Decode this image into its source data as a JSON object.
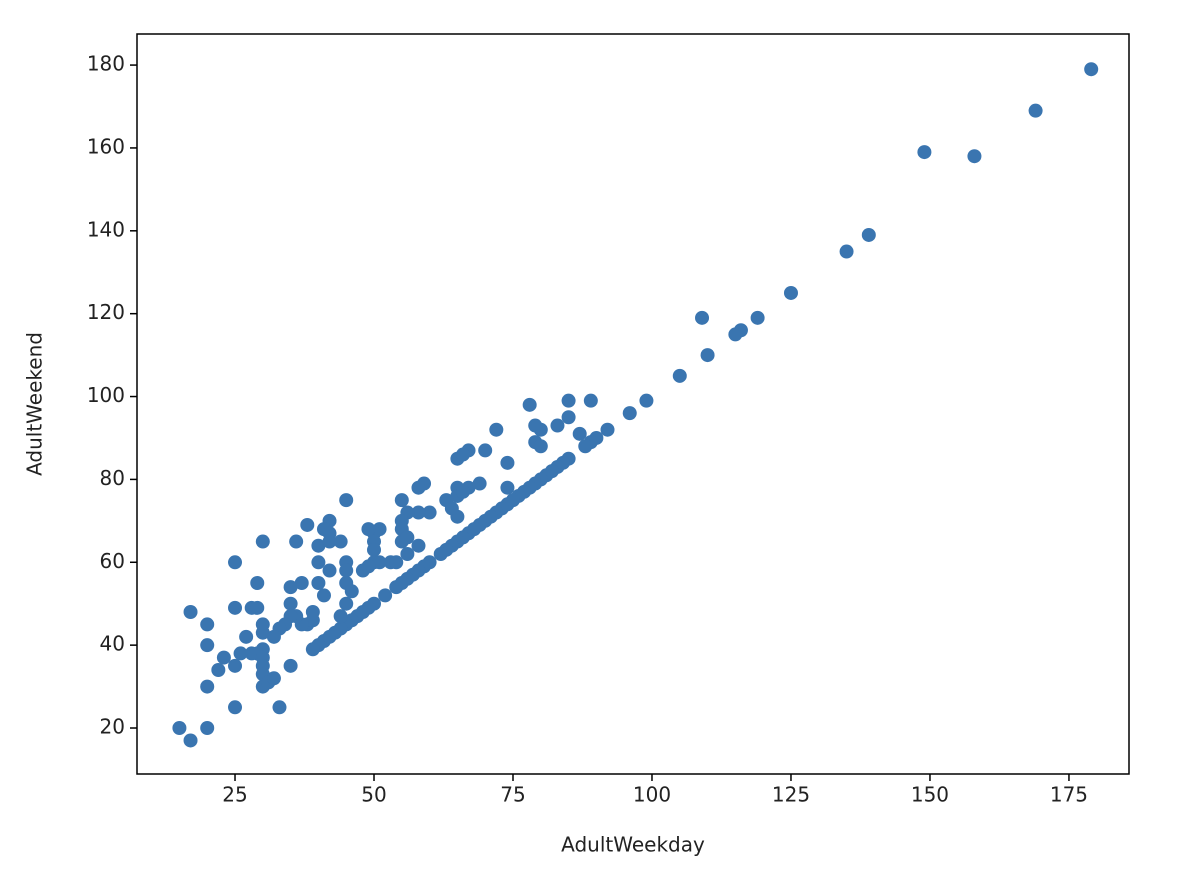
{
  "chart_data": {
    "type": "scatter",
    "xlabel": "AdultWeekday",
    "ylabel": "AdultWeekend",
    "color": "#3a75b0",
    "x": [
      179,
      169,
      149,
      158,
      139,
      135,
      125,
      119,
      116,
      115,
      109,
      110,
      105,
      99,
      96,
      92,
      90,
      89,
      88,
      89,
      85,
      87,
      85,
      83,
      80,
      79,
      79,
      80,
      78,
      85,
      84,
      83,
      82,
      81,
      80,
      79,
      78,
      77,
      76,
      75,
      74,
      74,
      74,
      72,
      70,
      67,
      65,
      66,
      69,
      67,
      65,
      65,
      66,
      73,
      72,
      71,
      70,
      69,
      68,
      67,
      66,
      65,
      64,
      63,
      62,
      65,
      63,
      64,
      60,
      58,
      59,
      58,
      55,
      56,
      55,
      55,
      55,
      56,
      51,
      50,
      49,
      50,
      50,
      50,
      51,
      48,
      49,
      53,
      54,
      56,
      58,
      60,
      59,
      58,
      57,
      56,
      55,
      54,
      52,
      50,
      49,
      48,
      47,
      46,
      45,
      44,
      43,
      42,
      41,
      40,
      39,
      45,
      44,
      42,
      41,
      42,
      40,
      42,
      38,
      36,
      37,
      40,
      40,
      42,
      45,
      45,
      45,
      46,
      45,
      44,
      41,
      38,
      39,
      39,
      37,
      36,
      35,
      35,
      35,
      34,
      33,
      32,
      30,
      30,
      30,
      29,
      28,
      30,
      30,
      30,
      30,
      31,
      32,
      33,
      35,
      30,
      29,
      28,
      29,
      25,
      25,
      27,
      26,
      25,
      23,
      22,
      20,
      20,
      20,
      25,
      17,
      15,
      17,
      20
    ],
    "values": [
      179,
      169,
      159,
      158,
      139,
      135,
      125,
      119,
      116,
      115,
      119,
      110,
      105,
      99,
      96,
      92,
      90,
      89,
      88,
      99,
      99,
      91,
      95,
      93,
      92,
      93,
      89,
      88,
      98,
      85,
      84,
      83,
      82,
      81,
      80,
      79,
      78,
      77,
      76,
      75,
      74,
      78,
      84,
      92,
      87,
      87,
      85,
      86,
      79,
      78,
      78,
      76,
      77,
      73,
      72,
      71,
      70,
      69,
      68,
      67,
      66,
      65,
      64,
      63,
      62,
      71,
      75,
      73,
      72,
      72,
      79,
      78,
      75,
      72,
      70,
      68,
      65,
      66,
      68,
      67,
      68,
      65,
      63,
      60,
      60,
      58,
      59,
      60,
      60,
      62,
      64,
      60,
      59,
      58,
      57,
      56,
      55,
      54,
      52,
      50,
      49,
      48,
      47,
      46,
      45,
      44,
      43,
      42,
      41,
      40,
      39,
      75,
      65,
      70,
      68,
      67,
      64,
      65,
      69,
      65,
      55,
      60,
      55,
      58,
      60,
      58,
      55,
      53,
      50,
      47,
      52,
      45,
      46,
      48,
      45,
      47,
      50,
      54,
      47,
      45,
      44,
      42,
      45,
      43,
      39,
      38,
      38,
      37,
      35,
      33,
      30,
      31,
      32,
      25,
      35,
      65,
      55,
      49,
      49,
      49,
      60,
      42,
      38,
      35,
      37,
      34,
      40,
      45,
      30,
      25,
      48,
      20,
      17,
      20
    ],
    "xlim": [
      7.37,
      185.8
    ],
    "ylim": [
      8.9,
      187.5
    ],
    "xticks": [
      25,
      50,
      75,
      100,
      125,
      150,
      175
    ],
    "yticks": [
      20,
      40,
      60,
      80,
      100,
      120,
      140,
      160,
      180
    ]
  }
}
